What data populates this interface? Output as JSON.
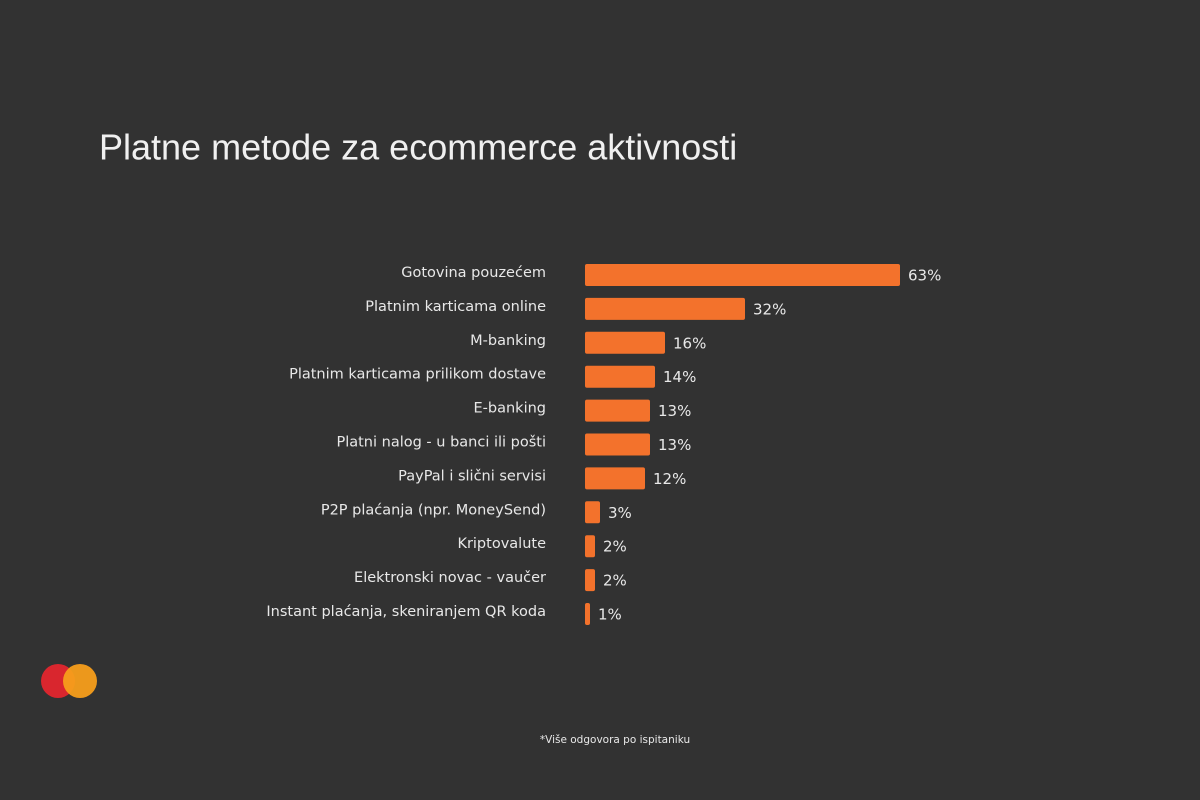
{
  "chart_data": {
    "type": "bar",
    "orientation": "horizontal",
    "title": "Platne metode za ecommerce aktivnosti",
    "categories": [
      "Gotovina pouzećem",
      "Platnim karticama online",
      "M-banking",
      "Platnim karticama prilikom dostave",
      "E-banking",
      "Platni nalog - u banci ili pošti",
      "PayPal i slični servisi",
      "P2P plaćanja  (npr. MoneySend)",
      "Kriptovalute",
      "Elektronski novac - vaučer",
      "Instant plaćanja, skeniranjem QR koda"
    ],
    "values": [
      63,
      32,
      16,
      14,
      13,
      13,
      12,
      3,
      2,
      2,
      1
    ],
    "value_labels": [
      "63%",
      "32%",
      "16%",
      "14%",
      "13%",
      "13%",
      "12%",
      "3%",
      "2%",
      "2%",
      "1%"
    ],
    "color": "#f3722c",
    "footnote": "*Više odgovora po ispitaniku"
  }
}
